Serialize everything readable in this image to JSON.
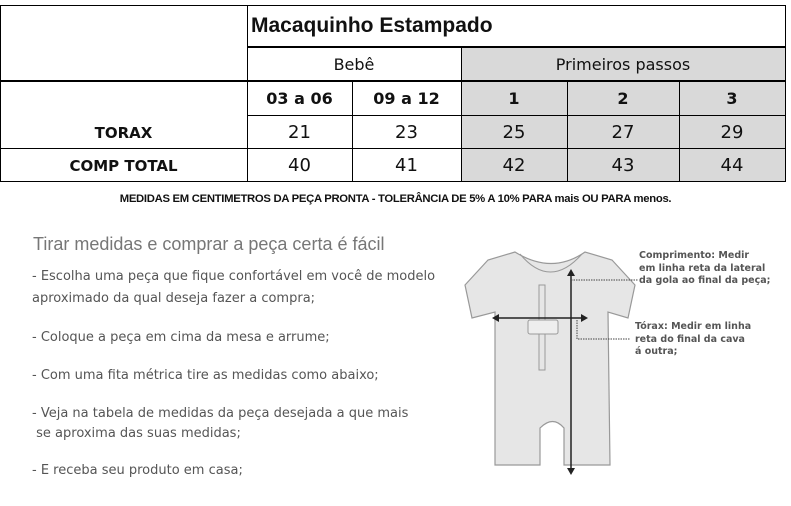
{
  "table": {
    "title": "Macaquinho Estampado",
    "groups": [
      "Bebê",
      "Primeiros passos"
    ],
    "sizes": [
      "03 a 06",
      "09 a 12",
      "1",
      "2",
      "3"
    ],
    "rows": [
      {
        "label": "TORAX",
        "values": [
          "21",
          "23",
          "25",
          "27",
          "29"
        ]
      },
      {
        "label": "COMP TOTAL",
        "values": [
          "40",
          "41",
          "42",
          "43",
          "44"
        ]
      }
    ],
    "note": "MEDIDAS EM CENTIMETROS DA PEÇA PRONTA - TOLERÂNCIA DE 5% A 10% PARA mais OU PARA menos."
  },
  "guide": {
    "heading": "Tirar medidas e comprar a peça certa é fácil",
    "steps": [
      "- Escolha uma peça que fique confortável em você de modelo",
      "aproximado da qual deseja fazer a compra;",
      "- Coloque a peça em cima da mesa e arrume;",
      "- Com uma fita métrica tire as medidas como abaixo;",
      "- Veja na tabela de medidas da peça desejada a que mais",
      " se aproxima das suas medidas;",
      "- E receba seu produto em casa;"
    ],
    "length_note": [
      "Comprimento: Medir",
      "em linha reta da lateral",
      "da gola ao final da peça;"
    ],
    "chest_note": [
      "Tórax: Medir em linha",
      "reta do final da cava",
      "á outra;"
    ]
  }
}
